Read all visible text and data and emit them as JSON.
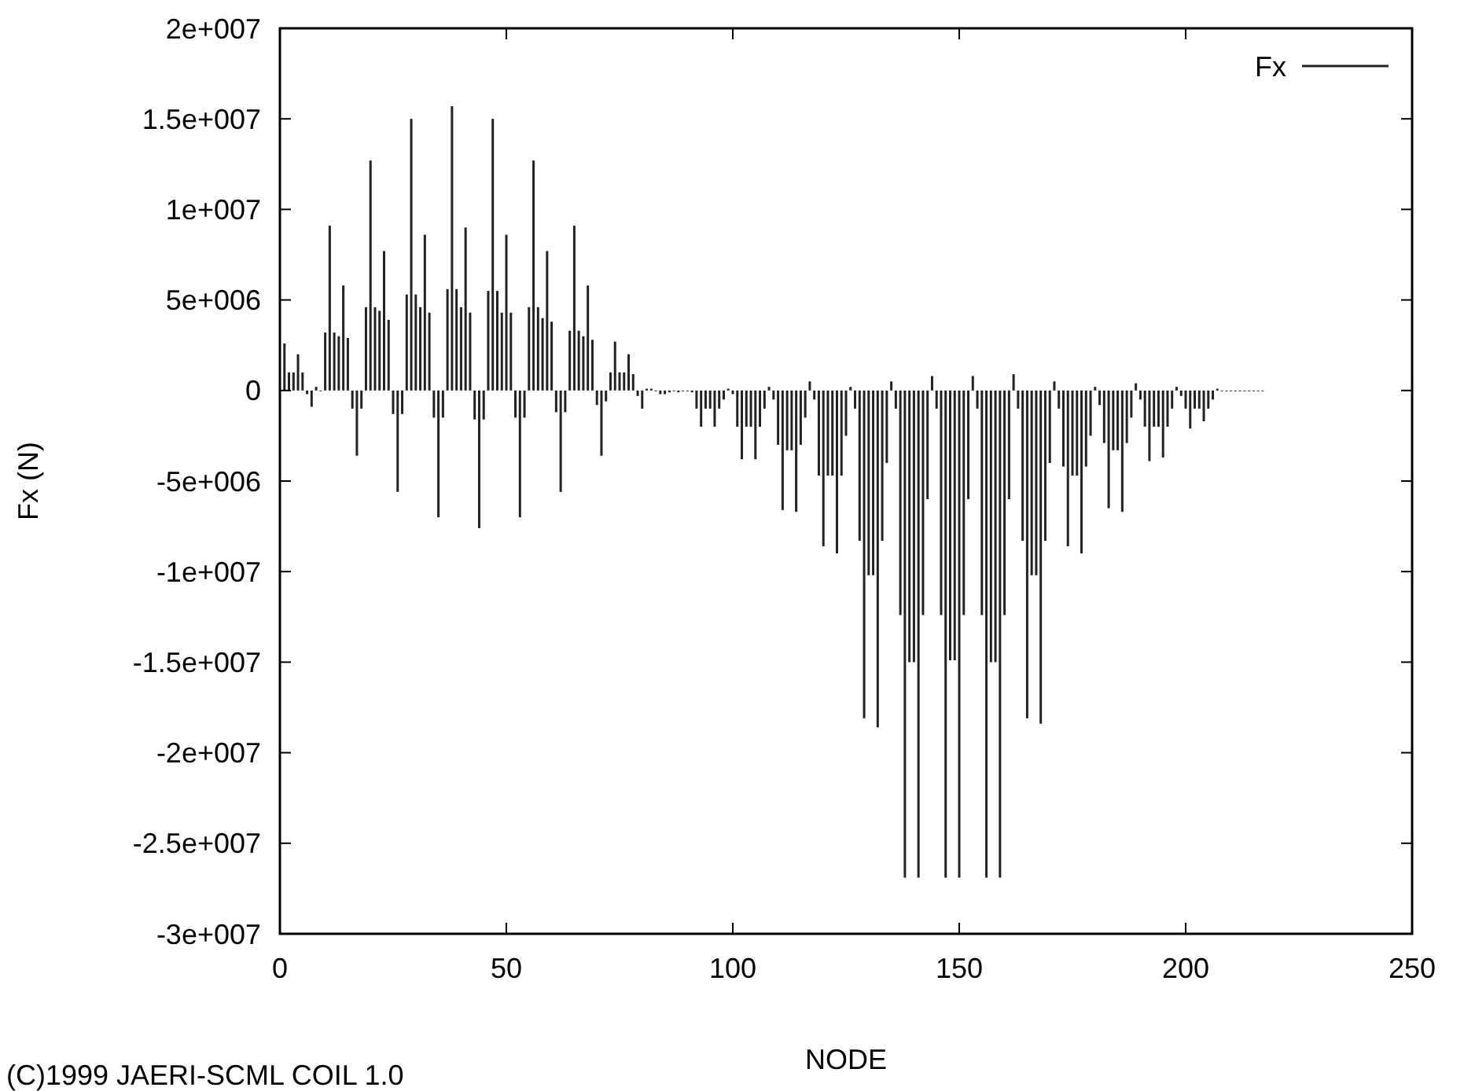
{
  "chart_data": {
    "type": "bar",
    "xlabel": "NODE",
    "ylabel": "Fx (N)",
    "annotations": [
      "(C)1999 JAERI-SCML COIL 1.0"
    ],
    "x": [
      1,
      2,
      3,
      4,
      5,
      6,
      7,
      8,
      9,
      10,
      11,
      12,
      13,
      14,
      15,
      16,
      17,
      18,
      19,
      20,
      21,
      22,
      23,
      24,
      25,
      26,
      27,
      28,
      29,
      30,
      31,
      32,
      33,
      34,
      35,
      36,
      37,
      38,
      39,
      40,
      41,
      42,
      43,
      44,
      45,
      46,
      47,
      48,
      49,
      50,
      51,
      52,
      53,
      54,
      55,
      56,
      57,
      58,
      59,
      60,
      61,
      62,
      63,
      64,
      65,
      66,
      67,
      68,
      69,
      70,
      71,
      72,
      73,
      74,
      75,
      76,
      77,
      78,
      79,
      80,
      81,
      82,
      83,
      84,
      85,
      86,
      87,
      88,
      89,
      90,
      91,
      92,
      93,
      94,
      95,
      96,
      97,
      98,
      99,
      100,
      101,
      102,
      103,
      104,
      105,
      106,
      107,
      108,
      109,
      110,
      111,
      112,
      113,
      114,
      115,
      116,
      117,
      118,
      119,
      120,
      121,
      122,
      123,
      124,
      125,
      126,
      127,
      128,
      129,
      130,
      131,
      132,
      133,
      134,
      135,
      136,
      137,
      138,
      139,
      140,
      141,
      142,
      143,
      144,
      145,
      146,
      147,
      148,
      149,
      150,
      151,
      152,
      153,
      154,
      155,
      156,
      157,
      158,
      159,
      160,
      161,
      162,
      163,
      164,
      165,
      166,
      167,
      168,
      169,
      170,
      171,
      172,
      173,
      174,
      175,
      176,
      177,
      178,
      179,
      180,
      181,
      182,
      183,
      184,
      185,
      186,
      187,
      188,
      189,
      190,
      191,
      192,
      193,
      194,
      195,
      196,
      197,
      198,
      199,
      200,
      201,
      202,
      203,
      204,
      205,
      206,
      207,
      208,
      209,
      210,
      211,
      212,
      213,
      214,
      215,
      216,
      217
    ],
    "series": [
      {
        "name": "Fx",
        "color": "#222222",
        "values": [
          2600000.0,
          1000000.0,
          1000000.0,
          2000000.0,
          1000000.0,
          -200000.0,
          -900000.0,
          200000.0,
          0,
          3200000.0,
          9100000.0,
          3200000.0,
          3000000.0,
          5800000.0,
          2900000.0,
          -1000000.0,
          -3600000.0,
          -1000000.0,
          4600000.0,
          12700000.0,
          4600000.0,
          4400000.0,
          7700000.0,
          3900000.0,
          -1300000.0,
          -5600000.0,
          -1300000.0,
          5300000.0,
          15000000.0,
          5300000.0,
          4600000.0,
          8600000.0,
          4300000.0,
          -1500000.0,
          -7000000.0,
          -1500000.0,
          5600000.0,
          15700000.0,
          5600000.0,
          4600000.0,
          9000000.0,
          4300000.0,
          -1600000.0,
          -7600000.0,
          -1600000.0,
          5500000.0,
          15000000.0,
          5500000.0,
          4300000.0,
          8600000.0,
          4300000.0,
          -1500000.0,
          -7000000.0,
          -1500000.0,
          4600000.0,
          12700000.0,
          4600000.0,
          4000000.0,
          7700000.0,
          3800000.0,
          -1200000.0,
          -5600000.0,
          -1200000.0,
          3300000.0,
          9100000.0,
          3300000.0,
          3000000.0,
          5800000.0,
          2800000.0,
          -800000.0,
          -3600000.0,
          -600000.0,
          1000000.0,
          2700000.0,
          1000000.0,
          1000000.0,
          2000000.0,
          900000.0,
          -300000.0,
          -1000000.0,
          100000.0,
          100000.0,
          0,
          -200000.0,
          -200000.0,
          -100000.0,
          0,
          -100000.0,
          0,
          0,
          -100000.0,
          -1000000.0,
          -2000000.0,
          -1000000.0,
          -1000000.0,
          -2000000.0,
          -1000000.0,
          -500000.0,
          100000.0,
          -200000.0,
          -2000000.0,
          -3800000.0,
          -2000000.0,
          -2000000.0,
          -3800000.0,
          -2000000.0,
          -1000000.0,
          200000.0,
          -500000.0,
          -3000000.0,
          -6600000.0,
          -3300000.0,
          -3300000.0,
          -6700000.0,
          -3000000.0,
          -1500000.0,
          500000.0,
          -500000.0,
          -4700000.0,
          -8600000.0,
          -4700000.0,
          -4700000.0,
          -9000000.0,
          -4700000.0,
          -2500000.0,
          200000.0,
          -1000000.0,
          -8300000.0,
          -18100000.0,
          -10200000.0,
          -10200000.0,
          -18600000.0,
          -8300000.0,
          -4000000.0,
          500000.0,
          -1000000.0,
          -12400000.0,
          -26900000.0,
          -15000000.0,
          -15000000.0,
          -26900000.0,
          -12400000.0,
          -6000000.0,
          800000.0,
          -1000000.0,
          -12400000.0,
          -26900000.0,
          -14900000.0,
          -14900000.0,
          -26900000.0,
          -12400000.0,
          -6000000.0,
          800000.0,
          -1000000.0,
          -12400000.0,
          -26900000.0,
          -15000000.0,
          -15000000.0,
          -26900000.0,
          -12400000.0,
          -6000000.0,
          900000.0,
          -1000000.0,
          -8300000.0,
          -18100000.0,
          -10200000.0,
          -10200000.0,
          -18400000.0,
          -8300000.0,
          -4000000.0,
          500000.0,
          -1000000.0,
          -4200000.0,
          -8600000.0,
          -4700000.0,
          -4700000.0,
          -9000000.0,
          -4200000.0,
          -2500000.0,
          200000.0,
          -800000.0,
          -2900000.0,
          -6500000.0,
          -3300000.0,
          -3300000.0,
          -6700000.0,
          -2900000.0,
          -1500000.0,
          400000.0,
          -500000.0,
          -2000000.0,
          -3900000.0,
          -2000000.0,
          -2000000.0,
          -3700000.0,
          -2000000.0,
          -1000000.0,
          200000.0,
          -300000.0,
          -1000000.0,
          -2100000.0,
          -1000000.0,
          -1000000.0,
          -1700000.0,
          -1000000.0,
          -500000.0,
          100000.0,
          0,
          0,
          0,
          0,
          0,
          0,
          0,
          0,
          0,
          0
        ]
      }
    ],
    "xlim": [
      0,
      250
    ],
    "xticks": [
      0,
      50,
      100,
      150,
      200,
      250
    ],
    "ylim": [
      -30000000.0,
      20000000.0
    ],
    "yticks": [
      {
        "value": -30000000.0,
        "label": "-3e+007"
      },
      {
        "value": -25000000.0,
        "label": "-2.5e+007"
      },
      {
        "value": -20000000.0,
        "label": "-2e+007"
      },
      {
        "value": -15000000.0,
        "label": "-1.5e+007"
      },
      {
        "value": -10000000.0,
        "label": "-1e+007"
      },
      {
        "value": -5000000.0,
        "label": "-5e+006"
      },
      {
        "value": 0,
        "label": "0"
      },
      {
        "value": 5000000.0,
        "label": "5e+006"
      },
      {
        "value": 10000000.0,
        "label": "1e+007"
      },
      {
        "value": 15000000.0,
        "label": "1.5e+007"
      },
      {
        "value": 20000000.0,
        "label": "2e+007"
      }
    ],
    "grid": false,
    "legend": "top right"
  }
}
